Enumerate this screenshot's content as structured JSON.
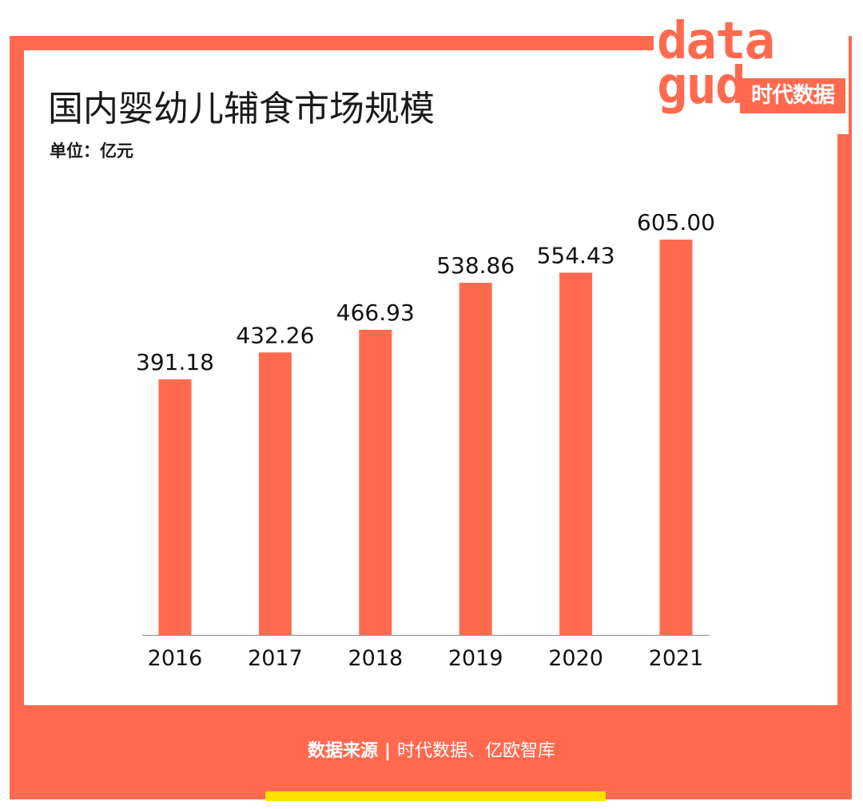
{
  "title": "国内婴幼儿辅食市场规模",
  "unit": "单位：亿元",
  "logo": {
    "word_top": "data",
    "word_bottom": "gud",
    "badge": "时代数据"
  },
  "source": {
    "label": "数据来源",
    "separator": "|",
    "text": "时代数据、亿欧智库"
  },
  "colors": {
    "accent": "#FF6A4F",
    "bar": "#FF6A4F",
    "highlight": "#FFE000",
    "text": "#111111"
  },
  "chart_data": {
    "type": "bar",
    "categories": [
      "2016",
      "2017",
      "2018",
      "2019",
      "2020",
      "2021"
    ],
    "values": [
      391.18,
      432.26,
      466.93,
      538.86,
      554.43,
      605.0
    ],
    "value_labels": [
      "391.18",
      "432.26",
      "466.93",
      "538.86",
      "554.43",
      "605.00"
    ],
    "title": "国内婴幼儿辅食市场规模",
    "xlabel": "",
    "ylabel": "",
    "ylim": [
      0,
      605
    ],
    "grid": false,
    "legend": "none"
  }
}
